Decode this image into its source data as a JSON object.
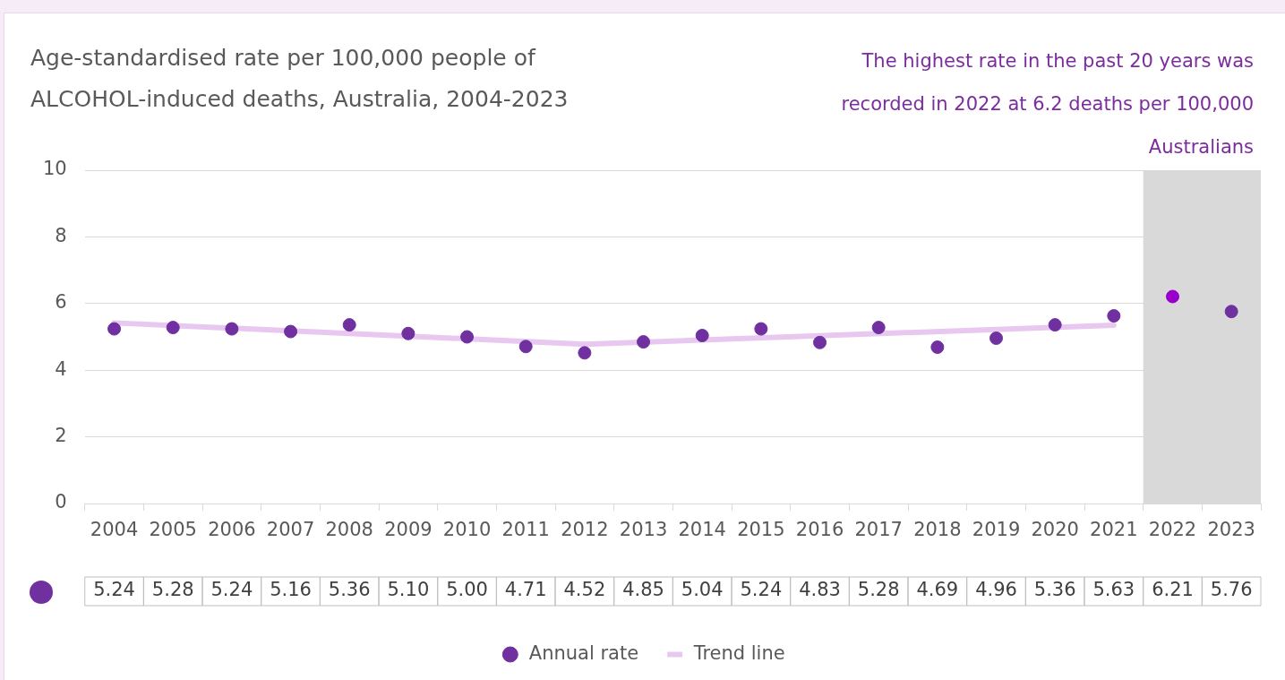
{
  "chart_data": {
    "type": "scatter",
    "title": "Age-standardised rate per 100,000 people of ALCOHOL-induced deaths, Australia, 2004-2023",
    "annotations": [
      "The highest rate in the past 20 years was recorded in 2022 at 6.2 deaths per 100,000 Australians"
    ],
    "categories": [
      "2004",
      "2005",
      "2006",
      "2007",
      "2008",
      "2009",
      "2010",
      "2011",
      "2012",
      "2013",
      "2014",
      "2015",
      "2016",
      "2017",
      "2018",
      "2019",
      "2020",
      "2021",
      "2022",
      "2023"
    ],
    "series": [
      {
        "name": "Annual rate",
        "marker": "circle",
        "color": "#7030a0",
        "colors": [
          "#7030a0",
          "#7030a0",
          "#7030a0",
          "#7030a0",
          "#7030a0",
          "#7030a0",
          "#7030a0",
          "#7030a0",
          "#7030a0",
          "#7030a0",
          "#7030a0",
          "#7030a0",
          "#7030a0",
          "#7030a0",
          "#7030a0",
          "#7030a0",
          "#7030a0",
          "#7030a0",
          "#9900cc",
          "#7030a0"
        ],
        "values": [
          5.24,
          5.28,
          5.24,
          5.16,
          5.36,
          5.1,
          5.0,
          4.71,
          4.52,
          4.85,
          5.04,
          5.24,
          4.83,
          5.28,
          4.69,
          4.96,
          5.36,
          5.63,
          6.21,
          5.76
        ],
        "value_labels": [
          "5.24",
          "5.28",
          "5.24",
          "5.16",
          "5.36",
          "5.10",
          "5.00",
          "4.71",
          "4.52",
          "4.85",
          "5.04",
          "5.24",
          "4.83",
          "5.28",
          "4.69",
          "4.96",
          "5.36",
          "5.63",
          "6.21",
          "5.76"
        ]
      },
      {
        "name": "Trend line",
        "type": "line",
        "marker": "none",
        "color": "#e8c8f0",
        "values": [
          5.42,
          null,
          null,
          null,
          null,
          null,
          null,
          null,
          4.78,
          null,
          null,
          null,
          null,
          null,
          null,
          null,
          null,
          5.35,
          null,
          null
        ]
      }
    ],
    "bands": [
      {
        "axis": "x",
        "from": "2022",
        "to": "2023",
        "color": "#d9d9d9"
      }
    ],
    "ylim": [
      0,
      10
    ],
    "yticks": [
      0,
      2,
      4,
      6,
      8,
      10
    ],
    "grid": "y",
    "legend": "bottom"
  }
}
